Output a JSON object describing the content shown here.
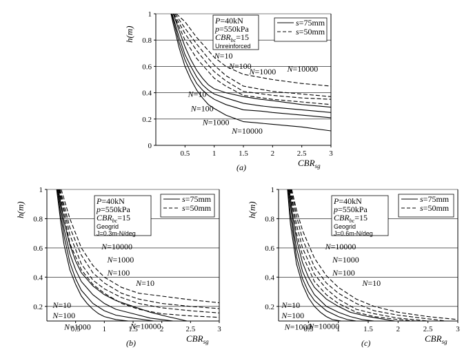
{
  "chart_data": [
    {
      "type": "line",
      "panel_label": "(a)",
      "xlabel": "CBR",
      "xlabel_sub": "sg",
      "ylabel": "h(m)",
      "xlim": [
        0,
        3
      ],
      "ylim": [
        0,
        1
      ],
      "xticks": [
        {
          "v": 0.5,
          "t": "0.5"
        },
        {
          "v": 1,
          "t": "1"
        },
        {
          "v": 1.5,
          "t": "1.5"
        },
        {
          "v": 2,
          "t": "2"
        },
        {
          "v": 2.5,
          "t": "2.5"
        },
        {
          "v": 3,
          "t": "3"
        }
      ],
      "yticks": [
        {
          "v": 0,
          "t": "0"
        },
        {
          "v": 0.2,
          "t": "0.2"
        },
        {
          "v": 0.4,
          "t": "0.4"
        },
        {
          "v": 0.6,
          "t": "0.6"
        },
        {
          "v": 0.8,
          "t": "0.8"
        },
        {
          "v": 1,
          "t": "1"
        }
      ],
      "grid": "horizontal",
      "info": [
        "P=40kN",
        "p=550kPa",
        "CBRbc=15",
        "Unreinforced"
      ],
      "legend": [
        {
          "style": "solid",
          "label": "s=75mm"
        },
        {
          "style": "dashed",
          "label": "s=50mm"
        }
      ],
      "series": [
        {
          "name": "N=10",
          "style": "solid",
          "x": [
            0.3,
            0.4,
            0.5,
            0.6,
            0.7,
            0.8,
            0.9,
            1.0,
            1.2,
            1.5,
            1.8,
            2.0,
            2.5,
            3.0
          ],
          "y": [
            1.0,
            0.87,
            0.75,
            0.65,
            0.57,
            0.51,
            0.46,
            0.43,
            0.4,
            0.37,
            0.35,
            0.34,
            0.31,
            0.29
          ]
        },
        {
          "name": "N=100",
          "style": "solid",
          "x": [
            0.28,
            0.4,
            0.5,
            0.6,
            0.7,
            0.8,
            0.9,
            1.0,
            1.2,
            1.5,
            1.8,
            2.0,
            2.5,
            3.0
          ],
          "y": [
            1.0,
            0.82,
            0.69,
            0.6,
            0.52,
            0.46,
            0.42,
            0.39,
            0.36,
            0.32,
            0.3,
            0.29,
            0.27,
            0.25
          ]
        },
        {
          "name": "N=1000",
          "style": "solid",
          "x": [
            0.27,
            0.4,
            0.5,
            0.6,
            0.7,
            0.8,
            0.9,
            1.0,
            1.2,
            1.5,
            1.8,
            2.0,
            2.5,
            3.0
          ],
          "y": [
            1.0,
            0.78,
            0.65,
            0.55,
            0.47,
            0.42,
            0.38,
            0.35,
            0.31,
            0.27,
            0.26,
            0.25,
            0.23,
            0.21
          ]
        },
        {
          "name": "N=10000",
          "style": "solid",
          "x": [
            0.26,
            0.3,
            0.4,
            0.5,
            0.6,
            0.7,
            0.8,
            0.9,
            1.0,
            1.2,
            1.5,
            2.0,
            2.5,
            3.0
          ],
          "y": [
            1.0,
            0.92,
            0.74,
            0.6,
            0.5,
            0.42,
            0.36,
            0.31,
            0.28,
            0.23,
            0.18,
            0.16,
            0.14,
            0.11
          ]
        },
        {
          "name": "N=10",
          "style": "dashed",
          "x": [
            0.35,
            0.5,
            0.7,
            0.9,
            1.0,
            1.2,
            1.5,
            2.0,
            2.5,
            3.0
          ],
          "y": [
            1.0,
            0.94,
            0.82,
            0.72,
            0.67,
            0.6,
            0.54,
            0.5,
            0.47,
            0.45
          ]
        },
        {
          "name": "N=100",
          "style": "dashed",
          "x": [
            0.33,
            0.5,
            0.7,
            0.9,
            1.0,
            1.2,
            1.5,
            2.0,
            2.5,
            3.0
          ],
          "y": [
            1.0,
            0.89,
            0.77,
            0.66,
            0.61,
            0.53,
            0.45,
            0.41,
            0.39,
            0.37
          ]
        },
        {
          "name": "N=1000",
          "style": "dashed",
          "x": [
            0.31,
            0.5,
            0.7,
            0.9,
            1.0,
            1.2,
            1.5,
            2.0,
            2.5,
            3.0
          ],
          "y": [
            1.0,
            0.85,
            0.72,
            0.61,
            0.56,
            0.49,
            0.41,
            0.38,
            0.36,
            0.35
          ]
        },
        {
          "name": "N=10000",
          "style": "dashed",
          "x": [
            0.3,
            0.5,
            0.7,
            0.9,
            1.0,
            1.2,
            1.5,
            2.0,
            2.5,
            3.0
          ],
          "y": [
            1.0,
            0.8,
            0.66,
            0.56,
            0.51,
            0.45,
            0.38,
            0.35,
            0.33,
            0.31
          ]
        }
      ],
      "annotations": [
        {
          "text": "N=10",
          "x": 0.55,
          "y": 0.37
        },
        {
          "text": "N=10",
          "x": 1.0,
          "y": 0.66
        },
        {
          "text": "N=100",
          "x": 0.6,
          "y": 0.26
        },
        {
          "text": "N=100",
          "x": 1.25,
          "y": 0.58
        },
        {
          "text": "N=1000",
          "x": 0.8,
          "y": 0.155
        },
        {
          "text": "N=1000",
          "x": 1.6,
          "y": 0.54
        },
        {
          "text": "N=10000",
          "x": 1.3,
          "y": 0.09
        },
        {
          "text": "N=10000",
          "x": 2.25,
          "y": 0.56
        }
      ]
    },
    {
      "type": "line",
      "panel_label": "(b)",
      "xlabel": "CBR",
      "xlabel_sub": "sg",
      "ylabel": "h(m)",
      "xlim": [
        0,
        3
      ],
      "ylim": [
        0.1,
        1
      ],
      "xticks": [
        {
          "v": 0.5,
          "t": "0.5"
        },
        {
          "v": 1,
          "t": "1"
        },
        {
          "v": 1.5,
          "t": "1.5"
        },
        {
          "v": 2,
          "t": "2"
        },
        {
          "v": 2.5,
          "t": "2.5"
        },
        {
          "v": 3,
          "t": "3"
        }
      ],
      "yticks": [
        {
          "v": 0.2,
          "t": "0.2"
        },
        {
          "v": 0.4,
          "t": "0.4"
        },
        {
          "v": 0.6,
          "t": "0.6"
        },
        {
          "v": 0.8,
          "t": "0.8"
        },
        {
          "v": 1,
          "t": "1"
        }
      ],
      "grid": "horizontal",
      "info": [
        "P=40kN",
        "p=550kPa",
        "CBRbc=15",
        "Geogrid",
        "J=0.3m-N/deg"
      ],
      "legend": [
        {
          "style": "solid",
          "label": "s=75mm"
        },
        {
          "style": "dashed",
          "label": "s=50mm"
        }
      ],
      "series": [
        {
          "name": "N=10",
          "style": "solid",
          "x": [
            0.2,
            0.3,
            0.4,
            0.5,
            0.6,
            0.8,
            1.0,
            1.2,
            1.5,
            1.8,
            2.1,
            2.44
          ],
          "y": [
            1.0,
            0.78,
            0.62,
            0.51,
            0.43,
            0.34,
            0.28,
            0.24,
            0.2,
            0.16,
            0.13,
            0.1
          ]
        },
        {
          "name": "N=100",
          "style": "solid",
          "x": [
            0.19,
            0.3,
            0.4,
            0.5,
            0.6,
            0.8,
            1.0,
            1.2,
            1.5,
            1.8,
            2.2
          ],
          "y": [
            1.0,
            0.73,
            0.56,
            0.45,
            0.37,
            0.28,
            0.22,
            0.18,
            0.15,
            0.12,
            0.1
          ]
        },
        {
          "name": "N=1000",
          "style": "solid",
          "x": [
            0.18,
            0.25,
            0.3,
            0.4,
            0.5,
            0.6,
            0.8,
            1.0,
            1.2,
            1.5,
            1.86
          ],
          "y": [
            1.0,
            0.8,
            0.68,
            0.5,
            0.39,
            0.31,
            0.22,
            0.17,
            0.14,
            0.12,
            0.1
          ]
        },
        {
          "name": "N=10000",
          "style": "solid",
          "x": [
            0.17,
            0.25,
            0.3,
            0.4,
            0.5,
            0.6,
            0.7,
            0.8,
            0.9,
            1.0,
            1.2,
            1.42
          ],
          "y": [
            1.0,
            0.75,
            0.62,
            0.45,
            0.35,
            0.27,
            0.22,
            0.18,
            0.15,
            0.13,
            0.11,
            0.1
          ]
        },
        {
          "name": "N=10",
          "style": "dashed",
          "x": [
            0.25,
            0.4,
            0.6,
            0.8,
            1.0,
            1.3,
            1.6,
            2.0,
            2.5,
            3.0
          ],
          "y": [
            1.0,
            0.8,
            0.6,
            0.48,
            0.4,
            0.33,
            0.29,
            0.27,
            0.245,
            0.225
          ]
        },
        {
          "name": "N=100",
          "style": "dashed",
          "x": [
            0.23,
            0.4,
            0.6,
            0.8,
            1.0,
            1.3,
            1.6,
            2.0,
            2.5,
            3.0
          ],
          "y": [
            1.0,
            0.74,
            0.55,
            0.43,
            0.36,
            0.29,
            0.25,
            0.22,
            0.2,
            0.185
          ]
        },
        {
          "name": "N=1000",
          "style": "dashed",
          "x": [
            0.22,
            0.4,
            0.6,
            0.8,
            1.0,
            1.3,
            1.6,
            2.0,
            2.5,
            3.0
          ],
          "y": [
            1.0,
            0.69,
            0.49,
            0.38,
            0.32,
            0.26,
            0.22,
            0.19,
            0.17,
            0.155
          ]
        },
        {
          "name": "N=10000",
          "style": "dashed",
          "x": [
            0.21,
            0.4,
            0.6,
            0.8,
            1.0,
            1.3,
            1.6,
            2.0,
            2.5,
            3.0
          ],
          "y": [
            1.0,
            0.63,
            0.45,
            0.35,
            0.29,
            0.22,
            0.18,
            0.15,
            0.135,
            0.125
          ]
        }
      ],
      "annotations": [
        {
          "text": "N=10000",
          "x": 0.95,
          "y": 0.59
        },
        {
          "text": "N=1000",
          "x": 1.05,
          "y": 0.5
        },
        {
          "text": "N=100",
          "x": 1.05,
          "y": 0.41
        },
        {
          "text": "N=10",
          "x": 1.55,
          "y": 0.34
        },
        {
          "text": "N=10",
          "x": 0.1,
          "y": 0.19
        },
        {
          "text": "N=100",
          "x": 0.1,
          "y": 0.12
        },
        {
          "text": "N=1000",
          "x": 0.3,
          "y": 0.04
        },
        {
          "text": "N=10000",
          "x": 1.45,
          "y": 0.045
        }
      ]
    },
    {
      "type": "line",
      "panel_label": "(c)",
      "xlabel": "CBR",
      "xlabel_sub": "sg",
      "ylabel": "h(m)",
      "xlim": [
        0,
        3
      ],
      "ylim": [
        0.1,
        1
      ],
      "xticks": [
        {
          "v": 0.5,
          "t": "0.5"
        },
        {
          "v": 1,
          "t": "1"
        },
        {
          "v": 1.5,
          "t": "1.5"
        },
        {
          "v": 2,
          "t": "2"
        },
        {
          "v": 2.5,
          "t": "2.5"
        },
        {
          "v": 3,
          "t": "3"
        }
      ],
      "yticks": [
        {
          "v": 0.2,
          "t": "0.2"
        },
        {
          "v": 0.4,
          "t": "0.4"
        },
        {
          "v": 0.6,
          "t": "0.6"
        },
        {
          "v": 0.8,
          "t": "0.8"
        },
        {
          "v": 1,
          "t": "1"
        }
      ],
      "grid": "horizontal",
      "info": [
        "P=40kN",
        "p=550kPa",
        "CBRbc=15",
        "Geogrid",
        "J=0.6m-N/deg"
      ],
      "legend": [
        {
          "style": "solid",
          "label": "s=75mm"
        },
        {
          "style": "dashed",
          "label": "s=50mm"
        }
      ],
      "series": [
        {
          "name": "N=10",
          "style": "solid",
          "x": [
            0.18,
            0.25,
            0.3,
            0.4,
            0.5,
            0.6,
            0.8,
            1.0,
            1.2,
            1.5,
            1.8,
            1.95
          ],
          "y": [
            1.0,
            0.78,
            0.66,
            0.5,
            0.4,
            0.33,
            0.25,
            0.2,
            0.16,
            0.13,
            0.11,
            0.1
          ]
        },
        {
          "name": "N=100",
          "style": "solid",
          "x": [
            0.17,
            0.25,
            0.3,
            0.4,
            0.5,
            0.6,
            0.8,
            1.0,
            1.2,
            1.4,
            1.6
          ],
          "y": [
            1.0,
            0.72,
            0.6,
            0.44,
            0.35,
            0.28,
            0.2,
            0.16,
            0.13,
            0.11,
            0.1
          ]
        },
        {
          "name": "N=1000",
          "style": "solid",
          "x": [
            0.16,
            0.2,
            0.3,
            0.4,
            0.5,
            0.6,
            0.8,
            1.0,
            1.15,
            1.3
          ],
          "y": [
            1.0,
            0.82,
            0.54,
            0.39,
            0.3,
            0.24,
            0.17,
            0.13,
            0.11,
            0.1
          ]
        },
        {
          "name": "N=10000",
          "style": "solid",
          "x": [
            0.15,
            0.2,
            0.3,
            0.4,
            0.5,
            0.6,
            0.7,
            0.8,
            0.9,
            1.05
          ],
          "y": [
            1.0,
            0.76,
            0.49,
            0.35,
            0.26,
            0.2,
            0.16,
            0.13,
            0.11,
            0.1
          ]
        },
        {
          "name": "N=10",
          "style": "dashed",
          "x": [
            0.22,
            0.3,
            0.4,
            0.6,
            0.8,
            1.0,
            1.3,
            1.6,
            2.0,
            2.5,
            3.0
          ],
          "y": [
            1.0,
            0.86,
            0.72,
            0.53,
            0.41,
            0.33,
            0.25,
            0.2,
            0.16,
            0.13,
            0.11
          ]
        },
        {
          "name": "N=100",
          "style": "dashed",
          "x": [
            0.21,
            0.3,
            0.4,
            0.6,
            0.8,
            1.0,
            1.3,
            1.6,
            2.0,
            2.4,
            2.8
          ],
          "y": [
            1.0,
            0.82,
            0.66,
            0.47,
            0.36,
            0.29,
            0.22,
            0.17,
            0.14,
            0.12,
            0.1
          ]
        },
        {
          "name": "N=1000",
          "style": "dashed",
          "x": [
            0.2,
            0.3,
            0.4,
            0.6,
            0.8,
            1.0,
            1.3,
            1.6,
            2.0,
            2.5
          ],
          "y": [
            1.0,
            0.76,
            0.6,
            0.42,
            0.32,
            0.25,
            0.18,
            0.15,
            0.12,
            0.1
          ]
        },
        {
          "name": "N=10000",
          "style": "dashed",
          "x": [
            0.19,
            0.3,
            0.4,
            0.6,
            0.8,
            1.0,
            1.3,
            1.6,
            2.0,
            2.3
          ],
          "y": [
            1.0,
            0.7,
            0.55,
            0.37,
            0.28,
            0.22,
            0.16,
            0.13,
            0.11,
            0.1
          ]
        }
      ],
      "annotations": [
        {
          "text": "N=10000",
          "x": 0.78,
          "y": 0.59
        },
        {
          "text": "N=1000",
          "x": 0.9,
          "y": 0.5
        },
        {
          "text": "N=100",
          "x": 0.9,
          "y": 0.41
        },
        {
          "text": "N=10",
          "x": 1.4,
          "y": 0.34
        },
        {
          "text": "N=10",
          "x": 0.05,
          "y": 0.19
        },
        {
          "text": "N=100",
          "x": 0.05,
          "y": 0.12
        },
        {
          "text": "N=1000",
          "x": 0.1,
          "y": 0.04
        },
        {
          "text": "N=10000",
          "x": 0.5,
          "y": 0.045
        }
      ]
    }
  ]
}
